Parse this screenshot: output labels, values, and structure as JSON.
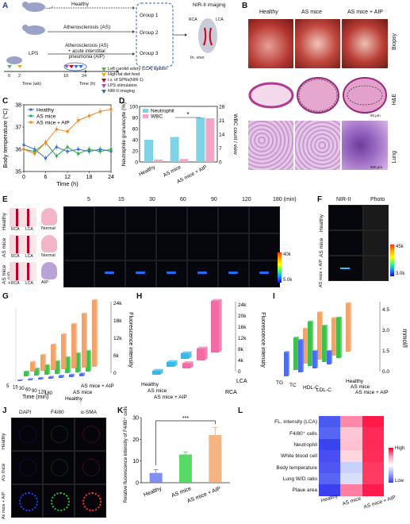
{
  "panels": {
    "A": {
      "letter": "A",
      "healthy": "Healthy",
      "group1": "Group 1",
      "group2": "Group 2",
      "group3": "Group 3",
      "as": "Atherosclerosis (AS)",
      "aip_line1": "Atherosclerosis (AS)",
      "aip_line2": "+ acute interstitial",
      "aip_line3": "pneumonia (AIP)",
      "lps": "LPS",
      "nir_title": "NIR-II imaging",
      "rca": "RCA",
      "lca": "LCA",
      "invivo": "In. vivo",
      "t0": "0",
      "t2": "2",
      "t10": "10",
      "t24": "24",
      "time_wk": "Time (wk)",
      "time_h": "Time (h)",
      "legend": [
        {
          "text": "Left carotid artery (LCA) ligation",
          "color": "#4caf50"
        },
        {
          "text": "High-fat diet feed",
          "color": "#f5a623"
        },
        {
          "text": "i.v. of SPNs(NIR-1)",
          "color": "#d0021b"
        },
        {
          "text": "LPS stimulation",
          "color": "#9b59b6"
        },
        {
          "text": "NIR-II imaging",
          "color": "#2f6fd6"
        }
      ]
    },
    "B": {
      "letter": "B",
      "cols": [
        "Healthy",
        "AS mice",
        "AS mice + AIP"
      ],
      "rows": [
        "Biopsy",
        "H&E",
        "Lung"
      ],
      "scale1": "50 μm",
      "scale2": "500 μm"
    },
    "C": {
      "letter": "C",
      "ylabel": "Body temperature (°C)",
      "xlabel": "Time (h)",
      "legend": [
        "Healthy",
        "AS mice",
        "AS mice + AIP"
      ]
    },
    "D": {
      "letter": "D",
      "ylabel": "Neutrophile granulocyte (%)",
      "ylabel2": "WBC count / view",
      "legend": [
        "Neutrophil",
        "WBC"
      ],
      "star": "*"
    },
    "E": {
      "letter": "E",
      "rows": [
        "Healthy",
        "AS mice",
        "AS mice + AIP"
      ],
      "times": [
        "5",
        "15",
        "30",
        "60",
        "90",
        "120",
        "180 (min)"
      ],
      "rca": "RCA",
      "lca": "LCA",
      "lung1": "Normal",
      "lung2": "Normal",
      "lung3": "AIP",
      "cb_high": "40k",
      "cb_low": "5.0k"
    },
    "F": {
      "letter": "F",
      "col1": "NIR-II",
      "col2": "Photo",
      "rows": [
        "Healthy",
        "AS mice",
        "AS mice + AIP"
      ],
      "cb_high": "45k",
      "cb_low": "3.0k"
    },
    "G": {
      "letter": "G",
      "zlabel": "Fluorescence intensity",
      "xlabel": "Time (min)",
      "ticks": [
        "5",
        "15",
        "30",
        "60",
        "90",
        "120",
        "180"
      ],
      "groups": [
        "Healthy",
        "AS mice",
        "AS mice + AIP"
      ],
      "z_ticks": [
        "0",
        "6k",
        "12k",
        "18k",
        "24k"
      ]
    },
    "H": {
      "letter": "H",
      "zlabel": "Fluorescence intensity",
      "groups": [
        "Healthy",
        "AS mice",
        "AS mice + AIP"
      ],
      "vessels": [
        "RCA",
        "LCA"
      ],
      "z_ticks": [
        "0",
        "4k",
        "8k",
        "12k",
        "16k",
        "20k",
        "24k"
      ]
    },
    "I": {
      "letter": "I",
      "zlabel": "mmol/l",
      "cats": [
        "TG",
        "TC",
        "HDL-C",
        "LDL-C"
      ],
      "groups": [
        "Healthy",
        "AS mice",
        "AS mice + AIP"
      ],
      "z_ticks": [
        "0.0",
        "1.5",
        "3.0",
        "4.5"
      ]
    },
    "J": {
      "letter": "J",
      "cols": [
        "DAPI",
        "F4/80",
        "α-SMA"
      ],
      "rows": [
        "Healthy",
        "AS mice",
        "As mice + AIP"
      ]
    },
    "K": {
      "letter": "K",
      "ylabel": "Relative fluorescence intensity of F4/80⁺ cells (%)",
      "cats": [
        "Healthy",
        "AS mice",
        "AS mice + AIP"
      ],
      "star": "***"
    },
    "L": {
      "letter": "L",
      "rows": [
        "FL. intensity (LCA)",
        "F4/80⁺ cells",
        "Neutrophil",
        "White blood cell",
        "Body temperature",
        "Lung W/D ratio",
        "Plaue area"
      ],
      "cols": [
        "Healthy",
        "AS mice",
        "AS mice + AIP"
      ],
      "high": "High",
      "low": "Low"
    }
  },
  "chart_data": [
    {
      "panel": "C",
      "type": "line",
      "x": [
        0,
        3,
        6,
        9,
        12,
        15,
        18,
        21,
        24
      ],
      "xlim": [
        0,
        24
      ],
      "ylim": [
        35,
        38
      ],
      "y_ticks": [
        35,
        36,
        37,
        38
      ],
      "x_ticks": [
        0,
        6,
        12,
        18,
        24
      ],
      "series": [
        {
          "name": "Healthy",
          "color": "#3a6fd8",
          "values": [
            36.2,
            36.0,
            35.6,
            36.1,
            35.9,
            36.0,
            35.9,
            36.0,
            35.9
          ]
        },
        {
          "name": "AS mice",
          "color": "#2fa84f",
          "values": [
            36.0,
            35.9,
            36.3,
            35.7,
            36.1,
            35.8,
            36.0,
            35.9,
            36.0
          ]
        },
        {
          "name": "AS mice + AIP",
          "color": "#f08a24",
          "values": [
            36.0,
            35.8,
            36.3,
            36.9,
            36.8,
            37.3,
            37.5,
            37.7,
            37.8
          ]
        }
      ]
    },
    {
      "panel": "D",
      "type": "bar",
      "categories": [
        "Healthy",
        "AS mice",
        "AS mice + AIP"
      ],
      "ylim": [
        0,
        100
      ],
      "y_ticks": [
        0,
        20,
        40,
        60,
        80,
        100
      ],
      "ylim2": [
        0,
        28
      ],
      "y2_ticks": [
        0,
        7,
        14,
        21,
        28
      ],
      "series": [
        {
          "name": "Neutrophil",
          "color": "#7fd3e6",
          "values": [
            40,
            45,
            80
          ]
        },
        {
          "name": "WBC",
          "color": "#f4a6c8",
          "values": [
            1.2,
            1.5,
            22
          ]
        }
      ]
    },
    {
      "panel": "K",
      "type": "bar",
      "categories": [
        "Healthy",
        "AS mice",
        "AS mice + AIP"
      ],
      "ylim": [
        0,
        30
      ],
      "y_ticks": [
        0,
        10,
        20,
        30
      ],
      "values": [
        4.5,
        13,
        22
      ],
      "errors": [
        1.5,
        1.2,
        3.5
      ],
      "colors": [
        "#6b7bf0",
        "#3cd24a",
        "#f5a86a"
      ]
    }
  ]
}
